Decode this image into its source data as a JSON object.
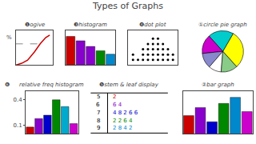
{
  "title": "Types of Graphs",
  "chart_data": [
    {
      "type": "line",
      "title": "❶ogive",
      "annotations": [
        "%"
      ],
      "series": [
        {
          "x": [
            0,
            0.08,
            0.18,
            0.35,
            0.55,
            0.72,
            0.88,
            1.0
          ],
          "values": [
            0,
            0.02,
            0.06,
            0.16,
            0.42,
            0.68,
            0.88,
            0.96
          ],
          "color": "#cc0000"
        },
        {
          "x": [
            0,
            0.792
          ],
          "values": [
            0.68,
            0.68
          ],
          "color": "#888888",
          "line_style": "dashed"
        }
      ],
      "xlim": [
        0,
        1.1
      ],
      "ylim": [
        0,
        1.1
      ],
      "tick_labels": false,
      "grid": false
    },
    {
      "type": "bar",
      "title": "❸histogram",
      "categories": [
        null,
        null,
        null,
        null,
        null
      ],
      "values": [
        1.0,
        0.85,
        0.65,
        0.5,
        0.38
      ],
      "colors": [
        "#cc0000",
        "#8800cc",
        "#8800cc",
        "#008800",
        "#0088cc"
      ],
      "ylim": [
        0,
        1.2
      ],
      "tick_labels": false,
      "grid": false
    },
    {
      "type": "scatter",
      "title": "❹dot plot",
      "x": [
        1,
        1,
        2,
        3,
        3,
        3,
        4,
        4,
        4,
        4,
        5,
        5,
        5,
        5,
        5,
        6,
        6,
        6,
        6,
        6,
        7,
        7,
        7,
        7,
        8,
        8,
        8,
        9,
        9
      ],
      "values": [
        1,
        2,
        1,
        1,
        2,
        3,
        1,
        2,
        3,
        4,
        1,
        2,
        3,
        4,
        5,
        1,
        2,
        3,
        4,
        5,
        1,
        2,
        3,
        4,
        1,
        2,
        3,
        1,
        2
      ],
      "color": "#000000",
      "marker": "dot",
      "xlim": [
        0,
        10
      ],
      "ylim": [
        0,
        6.5
      ],
      "tick_labels": false,
      "grid": false
    },
    {
      "type": "pie",
      "title": "①circle pie graph",
      "values": [
        30,
        20,
        15,
        12,
        10,
        13
      ],
      "colors": [
        "#ffff00",
        "#00cccc",
        "#cc00cc",
        "#8888cc",
        "#ffffff",
        "#88cc88"
      ]
    },
    {
      "type": "bar",
      "title": "relative freq histogram",
      "annotations": [
        "❻"
      ],
      "categories": [
        null,
        null,
        null,
        null,
        null,
        null
      ],
      "values": [
        0.08,
        0.18,
        0.22,
        0.4,
        0.32,
        0.12
      ],
      "colors": [
        "#cc0000",
        "#8800cc",
        "#0000cc",
        "#008800",
        "#00aacc",
        "#cc00cc"
      ],
      "ylim": [
        0,
        0.5
      ],
      "yticks": [
        0.1,
        0.4
      ],
      "tick_labels": "y",
      "grid": false
    },
    {
      "type": "stem_leaf",
      "title": "❺stem & leaf display",
      "stems": [
        "5",
        "6",
        "7",
        "8",
        "9"
      ],
      "leaves": [
        "2",
        "6 4",
        "4 8 2 6 6",
        "2 2 6 4",
        "2 8 4 2"
      ],
      "colors": [
        "#cc0000",
        "#8800cc",
        "#0000cc",
        "#008800",
        "#0088cc"
      ]
    },
    {
      "type": "bar",
      "title": "②bar graph",
      "categories": [
        null,
        null,
        null,
        null,
        null,
        null
      ],
      "values": [
        0.45,
        0.65,
        0.3,
        0.75,
        0.9,
        0.55
      ],
      "colors": [
        "#cc0000",
        "#8800cc",
        "#0000cc",
        "#008800",
        "#0088cc",
        "#cc00cc"
      ],
      "ylim": [
        0,
        1.05
      ],
      "tick_labels": false,
      "grid": false
    }
  ]
}
